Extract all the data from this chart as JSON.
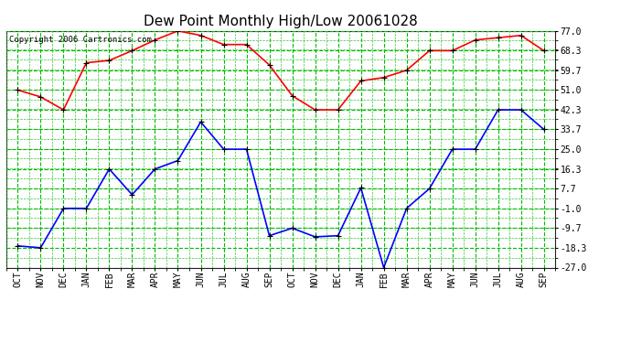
{
  "title": "Dew Point Monthly High/Low 20061028",
  "copyright": "Copyright 2006 Cartronics.com",
  "x_labels": [
    "OCT",
    "NOV",
    "DEC",
    "JAN",
    "FEB",
    "MAR",
    "APR",
    "MAY",
    "JUN",
    "JUL",
    "AUG",
    "SEP",
    "OCT",
    "NOV",
    "DEC",
    "JAN",
    "FEB",
    "MAR",
    "APR",
    "MAY",
    "JUN",
    "JUL",
    "AUG",
    "SEP"
  ],
  "y_ticks": [
    -27.0,
    -18.3,
    -9.7,
    -1.0,
    7.7,
    16.3,
    25.0,
    33.7,
    42.3,
    51.0,
    59.7,
    68.3,
    77.0
  ],
  "high_values": [
    51.0,
    48.0,
    42.3,
    63.0,
    64.0,
    68.3,
    73.0,
    77.0,
    75.0,
    71.0,
    71.0,
    62.0,
    48.5,
    42.3,
    42.3,
    55.0,
    56.5,
    59.7,
    68.3,
    68.3,
    73.0,
    74.0,
    75.0,
    68.3
  ],
  "low_values": [
    -17.5,
    -18.3,
    -1.0,
    -1.0,
    16.3,
    5.0,
    16.3,
    20.0,
    37.0,
    25.0,
    25.0,
    -13.0,
    -9.7,
    -13.5,
    -13.0,
    8.0,
    -27.0,
    -1.0,
    7.7,
    25.0,
    25.0,
    42.3,
    42.3,
    33.7
  ],
  "high_color": "#ff0000",
  "low_color": "#0000ff",
  "bg_color": "#ffffff",
  "plot_bg_color": "#ffffff",
  "grid_major_color": "#00bb00",
  "grid_minor_color": "#00bb00",
  "title_color": "#000000",
  "copyright_color": "#000000",
  "marker": "+",
  "marker_size": 5,
  "linewidth": 1.2,
  "ylim_min": -27.0,
  "ylim_max": 77.0,
  "title_fontsize": 11,
  "axis_fontsize": 7,
  "copyright_fontsize": 6.5
}
